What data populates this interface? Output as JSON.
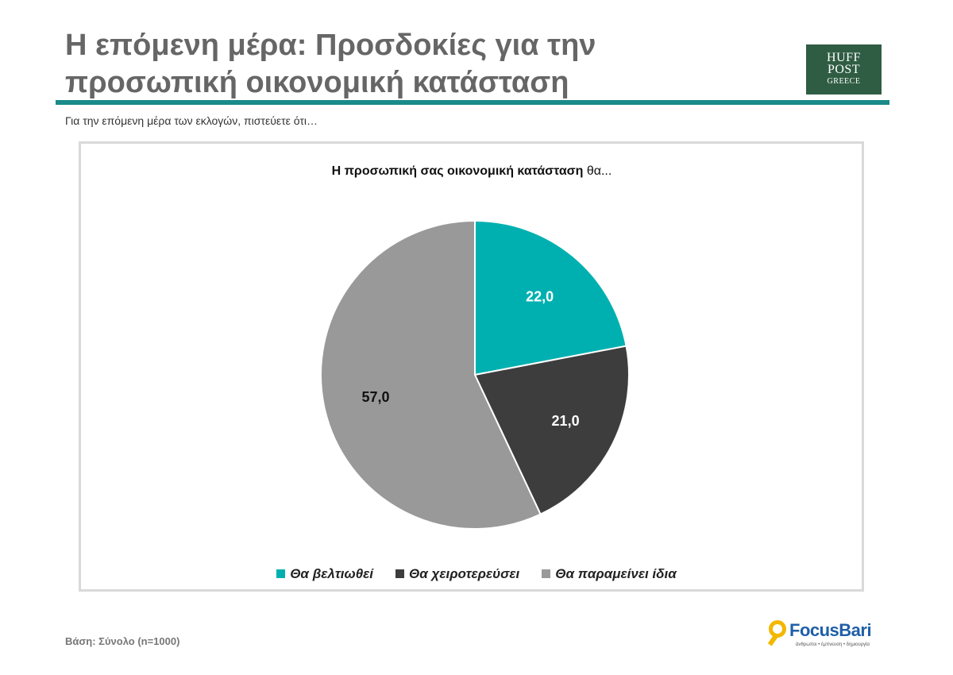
{
  "header": {
    "title_line1": "Η επόμενη μέρα: Προσδοκίες για την",
    "title_line2": "προσωπική οικονομική κατάσταση",
    "subtitle": "Για την επόμενη μέρα των εκλογών, πιστεύετε ότι…"
  },
  "logos": {
    "huffpost": {
      "line1": "HUFF",
      "line2": "POST",
      "line3": "GREECE"
    },
    "focusbari": {
      "name": "FocusBari",
      "tagline": "άνθρωποι • έμπνευση • δημιουργία"
    }
  },
  "footer": {
    "base": "Βάση: Σύνολο (n=1000)"
  },
  "colors": {
    "rule": "#1a8a8a",
    "huff_bg": "#2f5d43",
    "focus_accent": "#f2b800",
    "focus_text": "#1f5fa8"
  },
  "chart_data": {
    "type": "pie",
    "title_bold": "Η προσωπική σας οικονομική κατάσταση",
    "title_rest": " θα...",
    "categories": [
      "Θα βελτιωθεί",
      "Θα χειροτερεύσει",
      "Θα παραμείνει ίδια"
    ],
    "values": [
      22.0,
      21.0,
      57.0
    ],
    "labels": [
      "22,0",
      "21,0",
      "57,0"
    ],
    "colors": [
      "#00b0b0",
      "#3d3d3d",
      "#999999"
    ],
    "label_colors": [
      "#ffffff",
      "#ffffff",
      "#111111"
    ],
    "legend_position": "bottom"
  }
}
